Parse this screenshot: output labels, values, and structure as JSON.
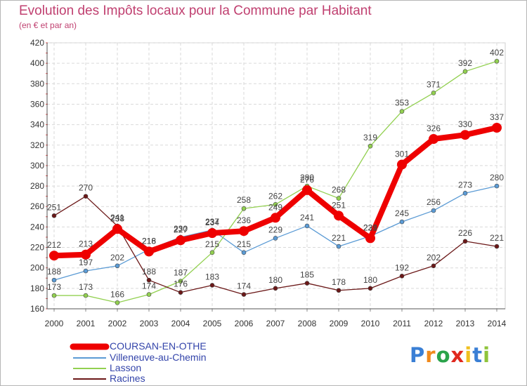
{
  "title": "Evolution des Impôts locaux pour la Commune par Habitant",
  "subtitle": "(en € et par an)",
  "chart_data": {
    "type": "line",
    "x": [
      "2000",
      "2001",
      "2002",
      "2003",
      "2004",
      "2005",
      "2006",
      "2007",
      "2008",
      "2009",
      "2010",
      "2011",
      "2012",
      "2013",
      "2014"
    ],
    "yticks": [
      160,
      180,
      200,
      220,
      240,
      260,
      280,
      300,
      320,
      340,
      360,
      380,
      400,
      420
    ],
    "ylim": [
      160,
      420
    ],
    "grid": true,
    "series": [
      {
        "name": "Villeneuve-au-Chemin",
        "color": "#5b9bd5",
        "values": [
          188,
          197,
          202,
          218,
          230,
          237,
          215,
          229,
          241,
          221,
          231,
          245,
          256,
          273,
          280
        ]
      },
      {
        "name": "Lasson",
        "color": "#92d050",
        "values": [
          173,
          173,
          166,
          174,
          187,
          215,
          258,
          262,
          280,
          268,
          319,
          353,
          371,
          392,
          402
        ]
      },
      {
        "name": "Racines",
        "color": "#6b1818",
        "values": [
          251,
          270,
          241,
          188,
          176,
          183,
          174,
          180,
          185,
          178,
          180,
          192,
          202,
          226,
          221
        ]
      },
      {
        "name": "COURSAN-EN-OTHE",
        "color": "#ee0000",
        "values": [
          212,
          213,
          238,
          216,
          227,
          234,
          236,
          249,
          276,
          251,
          229,
          301,
          326,
          330,
          337
        ]
      }
    ]
  },
  "legend": [
    {
      "label": "COURSAN-EN-OTHE",
      "color": "#ee0000",
      "text_color": "#3344aa"
    },
    {
      "label": "Villeneuve-au-Chemin",
      "color": "#5b9bd5",
      "text_color": "#3344aa"
    },
    {
      "label": "Lasson",
      "color": "#92d050",
      "text_color": "#3344aa"
    },
    {
      "label": "Racines",
      "color": "#6b1818",
      "text_color": "#3344aa"
    }
  ],
  "logo": {
    "letters": [
      "P",
      "r",
      "o",
      "x",
      "i",
      "t",
      "i"
    ],
    "colors": [
      "#3a7fd5",
      "#f08a1c",
      "#2aa34a",
      "#e0281e",
      "#f0c020",
      "#3a7fd5",
      "#8fc43b"
    ]
  }
}
